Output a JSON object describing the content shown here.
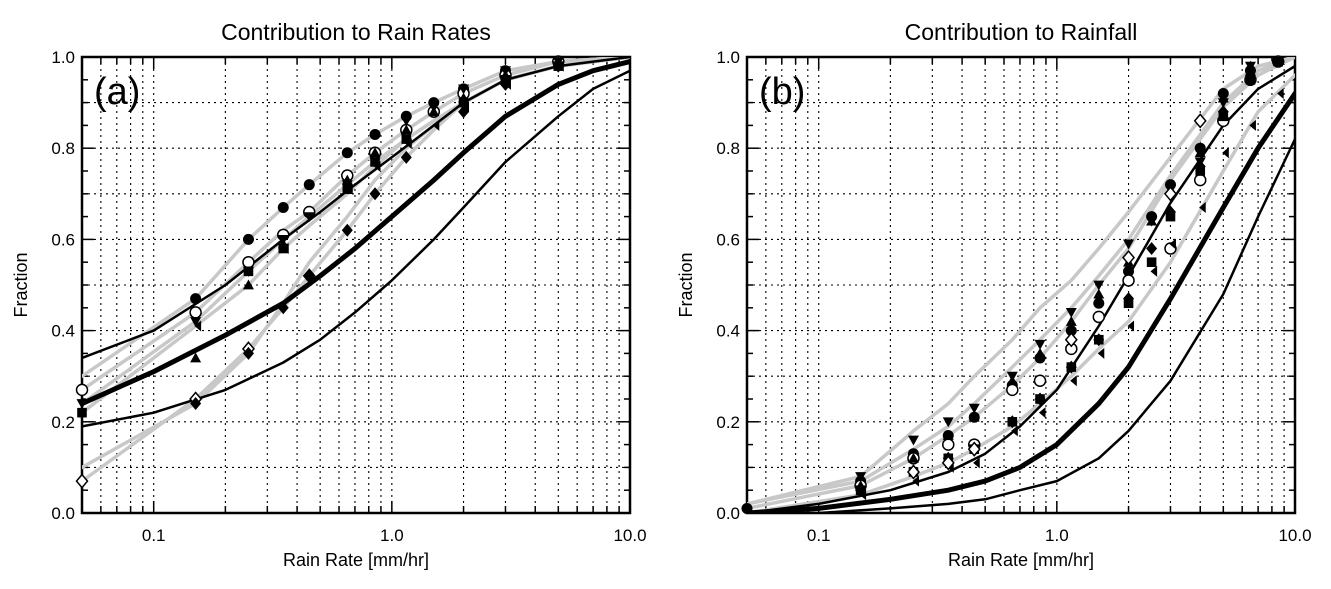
{
  "chart_data": [
    {
      "type": "line",
      "title": "Contribution to Rain Rates",
      "panel_label": "(a)",
      "xlabel": "Rain Rate [mm/hr]",
      "ylabel": "Fraction",
      "x_scale": "log",
      "xlim": [
        0.05,
        10.0
      ],
      "ylim": [
        0.0,
        1.0
      ],
      "x_ticks": [
        "0.1",
        "1.0",
        "10.0"
      ],
      "y_ticks": [
        "0.0",
        "0.2",
        "0.4",
        "0.6",
        "0.8",
        "1.0"
      ],
      "grid": "dotted",
      "curves": [
        {
          "style": "thick-black",
          "x": [
            0.05,
            0.1,
            0.2,
            0.35,
            0.5,
            0.7,
            1.0,
            1.5,
            2.0,
            3.0,
            5.0,
            7.0,
            10.0
          ],
          "y": [
            0.24,
            0.31,
            0.39,
            0.46,
            0.52,
            0.58,
            0.65,
            0.73,
            0.79,
            0.87,
            0.94,
            0.97,
            0.99
          ]
        },
        {
          "style": "thin-black",
          "x": [
            0.05,
            0.1,
            0.2,
            0.35,
            0.5,
            0.7,
            1.0,
            1.5,
            2.0,
            3.0,
            5.0,
            7.0,
            10.0
          ],
          "y": [
            0.19,
            0.22,
            0.27,
            0.33,
            0.38,
            0.44,
            0.51,
            0.6,
            0.67,
            0.77,
            0.87,
            0.93,
            0.97
          ]
        },
        {
          "style": "thin-black",
          "x": [
            0.05,
            0.1,
            0.2,
            0.35,
            0.5,
            0.7,
            1.0,
            1.5,
            2.0,
            3.0,
            5.0,
            7.0,
            10.0
          ],
          "y": [
            0.34,
            0.4,
            0.5,
            0.6,
            0.66,
            0.72,
            0.78,
            0.85,
            0.9,
            0.95,
            0.98,
            0.99,
            1.0
          ]
        },
        {
          "style": "gray",
          "x": [
            0.05,
            0.15,
            0.25,
            0.35,
            0.45,
            0.65,
            0.85,
            1.15,
            1.5,
            2.0,
            3.0,
            5.0,
            10.0
          ],
          "y": [
            0.3,
            0.47,
            0.6,
            0.67,
            0.72,
            0.79,
            0.83,
            0.87,
            0.9,
            0.93,
            0.97,
            0.99,
            1.0
          ]
        },
        {
          "style": "gray",
          "x": [
            0.05,
            0.15,
            0.25,
            0.35,
            0.45,
            0.65,
            0.85,
            1.15,
            1.5,
            2.0,
            3.0,
            5.0,
            10.0
          ],
          "y": [
            0.27,
            0.44,
            0.55,
            0.62,
            0.66,
            0.74,
            0.79,
            0.84,
            0.88,
            0.92,
            0.96,
            0.99,
            1.0
          ]
        },
        {
          "style": "gray",
          "x": [
            0.05,
            0.15,
            0.25,
            0.35,
            0.45,
            0.65,
            0.85,
            1.15,
            1.5,
            2.0,
            3.0,
            5.0,
            10.0
          ],
          "y": [
            0.24,
            0.42,
            0.53,
            0.6,
            0.65,
            0.72,
            0.77,
            0.82,
            0.86,
            0.9,
            0.95,
            0.98,
            1.0
          ]
        },
        {
          "style": "gray",
          "x": [
            0.05,
            0.15,
            0.25,
            0.35,
            0.45,
            0.65,
            0.85,
            1.15,
            1.5,
            2.0,
            3.0,
            5.0,
            10.0
          ],
          "y": [
            0.22,
            0.41,
            0.5,
            0.58,
            0.63,
            0.7,
            0.76,
            0.82,
            0.86,
            0.9,
            0.95,
            0.98,
            1.0
          ]
        },
        {
          "style": "gray",
          "x": [
            0.05,
            0.15,
            0.25,
            0.35,
            0.45,
            0.65,
            0.85,
            1.15,
            1.5,
            2.0,
            3.0,
            5.0,
            10.0
          ],
          "y": [
            0.07,
            0.25,
            0.36,
            0.45,
            0.52,
            0.62,
            0.7,
            0.78,
            0.84,
            0.9,
            0.95,
            0.98,
            1.0
          ]
        },
        {
          "style": "gray",
          "x": [
            0.05,
            0.15,
            0.25,
            0.35,
            0.45,
            0.65,
            0.85,
            1.15,
            1.5,
            2.0,
            3.0,
            5.0,
            10.0
          ],
          "y": [
            0.1,
            0.24,
            0.35,
            0.46,
            0.55,
            0.65,
            0.73,
            0.8,
            0.85,
            0.9,
            0.95,
            0.98,
            1.0
          ]
        }
      ],
      "markers": [
        {
          "symbol": "circle-filled",
          "x": [
            0.15,
            0.25,
            0.35,
            0.45,
            0.65,
            0.85,
            1.15,
            1.5,
            2.0,
            3.0,
            5.0
          ],
          "y": [
            0.47,
            0.6,
            0.67,
            0.72,
            0.79,
            0.83,
            0.87,
            0.9,
            0.93,
            0.97,
            0.99
          ]
        },
        {
          "symbol": "circle-open",
          "x": [
            0.05,
            0.15,
            0.25,
            0.35,
            0.45,
            0.65,
            0.85,
            1.15,
            1.5,
            2.0,
            3.0,
            5.0
          ],
          "y": [
            0.27,
            0.44,
            0.55,
            0.61,
            0.66,
            0.74,
            0.79,
            0.84,
            0.88,
            0.92,
            0.96,
            0.99
          ]
        },
        {
          "symbol": "triangle-down",
          "x": [
            0.05,
            0.15,
            0.25,
            0.35,
            0.45,
            0.65,
            0.85,
            1.15,
            1.5,
            2.0,
            3.0,
            5.0
          ],
          "y": [
            0.24,
            0.42,
            0.53,
            0.6,
            0.65,
            0.72,
            0.77,
            0.86,
            0.89,
            0.93,
            0.97,
            0.99
          ]
        },
        {
          "symbol": "triangle-up",
          "x": [
            0.15,
            0.25,
            0.35,
            0.65,
            0.85,
            1.15,
            1.5,
            2.0,
            3.0,
            5.0
          ],
          "y": [
            0.34,
            0.5,
            0.59,
            0.73,
            0.79,
            0.84,
            0.88,
            0.91,
            0.96,
            0.99
          ]
        },
        {
          "symbol": "square-filled",
          "x": [
            0.05,
            0.25,
            0.35,
            0.65,
            0.85,
            1.15,
            2.0,
            3.0,
            5.0
          ],
          "y": [
            0.22,
            0.53,
            0.58,
            0.71,
            0.77,
            0.82,
            0.9,
            0.95,
            0.98
          ]
        },
        {
          "symbol": "bowtie",
          "x": [
            0.15,
            0.35,
            0.65,
            0.85,
            1.15,
            1.5,
            2.0,
            3.0,
            5.0
          ],
          "y": [
            0.41,
            0.58,
            0.71,
            0.76,
            0.81,
            0.85,
            0.89,
            0.94,
            0.98
          ]
        },
        {
          "symbol": "diamond-open",
          "x": [
            0.05,
            0.15,
            0.25,
            0.45
          ],
          "y": [
            0.07,
            0.25,
            0.36,
            0.52
          ]
        },
        {
          "symbol": "diamond-filled",
          "x": [
            0.15,
            0.25,
            0.35,
            0.45,
            0.65,
            0.85,
            1.15,
            2.0,
            3.0,
            5.0
          ],
          "y": [
            0.24,
            0.35,
            0.45,
            0.52,
            0.62,
            0.7,
            0.78,
            0.88,
            0.94,
            0.98
          ]
        }
      ]
    },
    {
      "type": "line",
      "title": "Contribution to Rainfall",
      "panel_label": "(b)",
      "xlabel": "Rain Rate [mm/hr]",
      "ylabel": "Fraction",
      "x_scale": "log",
      "xlim": [
        0.05,
        10.0
      ],
      "ylim": [
        0.0,
        1.0
      ],
      "x_ticks": [
        "0.1",
        "1.0",
        "10.0"
      ],
      "y_ticks": [
        "0.0",
        "0.2",
        "0.4",
        "0.6",
        "0.8",
        "1.0"
      ],
      "grid": "dotted",
      "curves": [
        {
          "style": "thick-black",
          "x": [
            0.05,
            0.1,
            0.2,
            0.35,
            0.5,
            0.7,
            1.0,
            1.5,
            2.0,
            3.0,
            5.0,
            7.0,
            10.0
          ],
          "y": [
            0.0,
            0.01,
            0.03,
            0.05,
            0.07,
            0.1,
            0.15,
            0.24,
            0.32,
            0.47,
            0.67,
            0.8,
            0.92
          ]
        },
        {
          "style": "thin-black",
          "x": [
            0.05,
            0.1,
            0.2,
            0.35,
            0.5,
            0.7,
            1.0,
            1.5,
            2.0,
            3.0,
            5.0,
            7.0,
            10.0
          ],
          "y": [
            0.0,
            0.0,
            0.01,
            0.02,
            0.03,
            0.05,
            0.07,
            0.12,
            0.18,
            0.29,
            0.48,
            0.65,
            0.82
          ]
        },
        {
          "style": "thin-black",
          "x": [
            0.05,
            0.1,
            0.2,
            0.35,
            0.5,
            0.7,
            1.0,
            1.5,
            2.0,
            3.0,
            5.0,
            7.0,
            10.0
          ],
          "y": [
            0.0,
            0.02,
            0.05,
            0.09,
            0.13,
            0.19,
            0.27,
            0.41,
            0.52,
            0.68,
            0.85,
            0.93,
            0.98
          ]
        },
        {
          "style": "gray",
          "x": [
            0.05,
            0.15,
            0.25,
            0.35,
            0.45,
            0.65,
            0.85,
            1.15,
            1.5,
            2.0,
            3.0,
            5.0,
            7.0,
            10.0
          ],
          "y": [
            0.02,
            0.08,
            0.18,
            0.24,
            0.3,
            0.38,
            0.45,
            0.51,
            0.58,
            0.66,
            0.78,
            0.93,
            0.98,
            1.0
          ]
        },
        {
          "style": "gray",
          "x": [
            0.05,
            0.15,
            0.25,
            0.35,
            0.45,
            0.65,
            0.85,
            1.15,
            1.5,
            2.0,
            3.0,
            5.0,
            7.0,
            10.0
          ],
          "y": [
            0.02,
            0.07,
            0.14,
            0.19,
            0.24,
            0.32,
            0.38,
            0.45,
            0.52,
            0.6,
            0.74,
            0.9,
            0.97,
            1.0
          ]
        },
        {
          "style": "gray",
          "x": [
            0.05,
            0.15,
            0.25,
            0.35,
            0.45,
            0.65,
            0.85,
            1.15,
            1.5,
            2.0,
            3.0,
            5.0,
            7.0,
            10.0
          ],
          "y": [
            0.01,
            0.06,
            0.12,
            0.17,
            0.21,
            0.28,
            0.34,
            0.42,
            0.5,
            0.58,
            0.73,
            0.89,
            0.96,
            1.0
          ]
        },
        {
          "style": "gray",
          "x": [
            0.05,
            0.15,
            0.25,
            0.35,
            0.45,
            0.65,
            0.85,
            1.15,
            1.5,
            2.0,
            3.0,
            5.0,
            7.0,
            10.0
          ],
          "y": [
            0.0,
            0.04,
            0.08,
            0.11,
            0.14,
            0.19,
            0.24,
            0.3,
            0.36,
            0.42,
            0.55,
            0.75,
            0.88,
            0.96
          ]
        }
      ],
      "markers": [
        {
          "symbol": "circle-filled",
          "x": [
            0.05,
            0.15,
            0.25,
            0.35,
            0.45,
            0.65,
            0.85,
            1.15,
            1.5,
            2.0,
            2.5,
            3.0,
            4.0,
            5.0,
            6.5,
            8.5
          ],
          "y": [
            0.01,
            0.07,
            0.13,
            0.17,
            0.21,
            0.28,
            0.34,
            0.4,
            0.46,
            0.53,
            0.65,
            0.72,
            0.8,
            0.92,
            0.97,
            0.99
          ]
        },
        {
          "symbol": "circle-open",
          "x": [
            0.15,
            0.25,
            0.35,
            0.45,
            0.65,
            0.85,
            1.15,
            1.5,
            2.0,
            3.0,
            4.0,
            5.0,
            6.5,
            8.5
          ],
          "y": [
            0.06,
            0.12,
            0.15,
            0.15,
            0.27,
            0.29,
            0.36,
            0.43,
            0.51,
            0.58,
            0.73,
            0.86,
            0.95,
            0.99
          ]
        },
        {
          "symbol": "triangle-down",
          "x": [
            0.15,
            0.25,
            0.35,
            0.45,
            0.65,
            0.85,
            1.15,
            1.5,
            2.0,
            2.5,
            3.0,
            4.0,
            5.0,
            6.5,
            8.5
          ],
          "y": [
            0.08,
            0.16,
            0.2,
            0.23,
            0.3,
            0.37,
            0.44,
            0.5,
            0.59,
            0.64,
            0.71,
            0.77,
            0.9,
            0.98,
            0.99
          ]
        },
        {
          "symbol": "triangle-up",
          "x": [
            0.15,
            0.25,
            0.35,
            0.45,
            0.65,
            0.85,
            1.15,
            1.5,
            2.0,
            2.5,
            3.0,
            4.0,
            5.0,
            6.5
          ],
          "y": [
            0.06,
            0.12,
            0.17,
            0.21,
            0.29,
            0.35,
            0.42,
            0.48,
            0.55,
            0.64,
            0.71,
            0.79,
            0.91,
            0.98
          ]
        },
        {
          "symbol": "square-filled",
          "x": [
            0.15,
            0.25,
            0.35,
            0.45,
            0.65,
            0.85,
            1.15,
            1.5,
            2.0,
            2.5,
            3.0,
            4.0,
            5.0,
            6.5,
            8.5
          ],
          "y": [
            0.05,
            0.09,
            0.12,
            0.14,
            0.2,
            0.25,
            0.32,
            0.38,
            0.46,
            0.55,
            0.65,
            0.75,
            0.87,
            0.95,
            0.99
          ]
        },
        {
          "symbol": "diamond-filled",
          "x": [
            0.15,
            0.25,
            0.35,
            0.45,
            0.65,
            0.85,
            1.15,
            1.5,
            2.0,
            2.5,
            3.0,
            4.0,
            5.0,
            6.5
          ],
          "y": [
            0.05,
            0.09,
            0.12,
            0.14,
            0.2,
            0.25,
            0.32,
            0.38,
            0.47,
            0.58,
            0.66,
            0.76,
            0.88,
            0.96
          ]
        },
        {
          "symbol": "bowtie",
          "x": [
            0.15,
            0.25,
            0.35,
            0.45,
            0.65,
            0.85,
            1.15,
            1.5,
            2.0,
            2.5,
            3.0,
            4.0,
            5.0,
            6.5,
            8.5
          ],
          "y": [
            0.04,
            0.07,
            0.1,
            0.11,
            0.18,
            0.22,
            0.29,
            0.35,
            0.41,
            0.53,
            0.59,
            0.67,
            0.79,
            0.85,
            0.92
          ]
        },
        {
          "symbol": "diamond-open",
          "x": [
            0.25,
            0.35,
            0.45,
            1.15,
            2.0,
            3.0,
            4.0
          ],
          "y": [
            0.09,
            0.11,
            0.14,
            0.38,
            0.56,
            0.7,
            0.86
          ]
        }
      ]
    }
  ]
}
